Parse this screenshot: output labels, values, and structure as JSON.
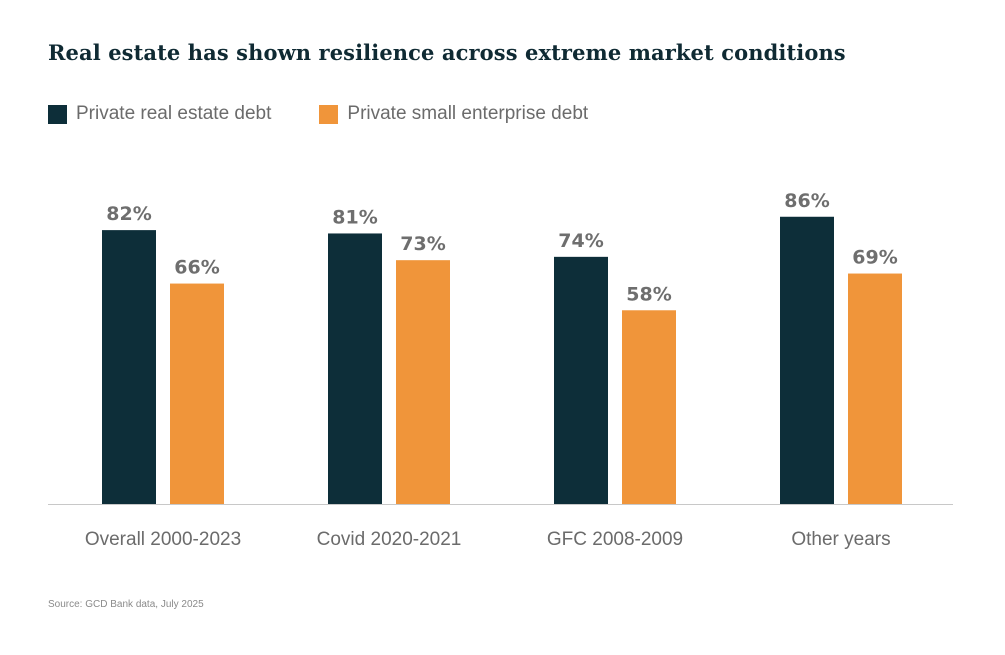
{
  "title": "Real estate has shown resilience across extreme market conditions",
  "legend": [
    {
      "label": "Private real estate debt",
      "color": "#0d2e39"
    },
    {
      "label": "Private small enterprise debt",
      "color": "#f0953a"
    }
  ],
  "source": "Source: GCD Bank data, July 2025",
  "chart_data": {
    "type": "bar",
    "categories": [
      "Overall 2000-2023",
      "Covid 2020-2021",
      "GFC 2008-2009",
      "Other years"
    ],
    "series": [
      {
        "name": "Private real estate debt",
        "values": [
          82,
          81,
          74,
          86
        ],
        "labels": [
          "82%",
          "81%",
          "74%",
          "86%"
        ],
        "color": "#0d2e39"
      },
      {
        "name": "Private small enterprise debt",
        "values": [
          66,
          73,
          58,
          69
        ],
        "labels": [
          "66%",
          "73%",
          "58%",
          "69%"
        ],
        "color": "#f0953a"
      }
    ],
    "ylim": [
      0,
      100
    ],
    "grid": false,
    "legend_position": "top-left"
  }
}
